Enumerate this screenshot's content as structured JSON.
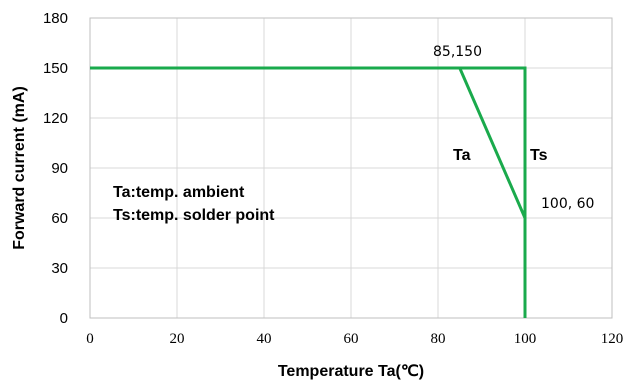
{
  "chart_data": {
    "type": "line",
    "xlabel": "Temperature Ta(℃)",
    "ylabel": "Forward current (mA)",
    "xlim": [
      0,
      120
    ],
    "ylim": [
      0,
      180
    ],
    "x_ticks": [
      "0",
      "20",
      "40",
      "60",
      "80",
      "100",
      "120"
    ],
    "y_ticks": [
      "0",
      "30",
      "60",
      "90",
      "120",
      "150",
      "180"
    ],
    "grid": true,
    "series": [
      {
        "label": "Ta",
        "color": "#1aaa4c",
        "points": [
          [
            0,
            150
          ],
          [
            85,
            150
          ],
          [
            100,
            60
          ],
          [
            100,
            0
          ]
        ]
      },
      {
        "label": "Ts",
        "color": "#1aaa4c",
        "points": [
          [
            0,
            150
          ],
          [
            100,
            150
          ],
          [
            100,
            0
          ]
        ]
      }
    ],
    "annotations": [
      {
        "text": "85,150",
        "x": 85,
        "y": 150
      },
      {
        "text": "100, 60",
        "x": 100,
        "y": 60
      }
    ],
    "legend_notes": [
      "Ta:temp. ambient",
      "Ts:temp. solder point"
    ]
  }
}
